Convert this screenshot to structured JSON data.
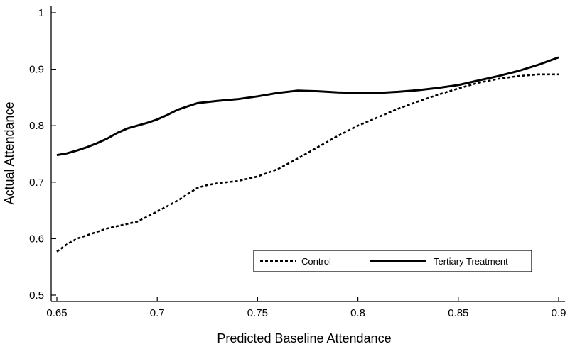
{
  "chart_data": {
    "type": "line",
    "title": "",
    "xlabel": "Predicted Baseline Attendance",
    "ylabel": "Actual Attendance",
    "xlim": [
      0.65,
      0.9
    ],
    "ylim": [
      0.5,
      1.0
    ],
    "x_ticks": [
      "0.65",
      "0.7",
      "0.75",
      "0.8",
      "0.85",
      "0.9"
    ],
    "y_ticks": [
      "0.5",
      "0.6",
      "0.7",
      "0.8",
      "0.9",
      "1"
    ],
    "grid": false,
    "legend_position": "bottom-right",
    "series": [
      {
        "name": "Control",
        "style": "dashed",
        "color": "#000000",
        "points": [
          [
            0.65,
            0.577
          ],
          [
            0.655,
            0.59
          ],
          [
            0.66,
            0.6
          ],
          [
            0.665,
            0.606
          ],
          [
            0.67,
            0.612
          ],
          [
            0.675,
            0.618
          ],
          [
            0.68,
            0.622
          ],
          [
            0.69,
            0.63
          ],
          [
            0.7,
            0.648
          ],
          [
            0.71,
            0.667
          ],
          [
            0.72,
            0.69
          ],
          [
            0.725,
            0.695
          ],
          [
            0.73,
            0.698
          ],
          [
            0.74,
            0.702
          ],
          [
            0.75,
            0.71
          ],
          [
            0.76,
            0.723
          ],
          [
            0.77,
            0.742
          ],
          [
            0.78,
            0.762
          ],
          [
            0.79,
            0.782
          ],
          [
            0.8,
            0.8
          ],
          [
            0.81,
            0.815
          ],
          [
            0.82,
            0.83
          ],
          [
            0.83,
            0.843
          ],
          [
            0.84,
            0.855
          ],
          [
            0.85,
            0.866
          ],
          [
            0.86,
            0.876
          ],
          [
            0.87,
            0.883
          ],
          [
            0.88,
            0.888
          ],
          [
            0.89,
            0.891
          ],
          [
            0.9,
            0.891
          ]
        ]
      },
      {
        "name": "Tertiary Treatment",
        "style": "solid",
        "color": "#000000",
        "points": [
          [
            0.65,
            0.748
          ],
          [
            0.655,
            0.751
          ],
          [
            0.66,
            0.756
          ],
          [
            0.665,
            0.762
          ],
          [
            0.67,
            0.769
          ],
          [
            0.675,
            0.777
          ],
          [
            0.68,
            0.787
          ],
          [
            0.685,
            0.795
          ],
          [
            0.69,
            0.8
          ],
          [
            0.695,
            0.805
          ],
          [
            0.7,
            0.811
          ],
          [
            0.705,
            0.819
          ],
          [
            0.71,
            0.828
          ],
          [
            0.715,
            0.834
          ],
          [
            0.72,
            0.84
          ],
          [
            0.73,
            0.844
          ],
          [
            0.74,
            0.847
          ],
          [
            0.75,
            0.852
          ],
          [
            0.76,
            0.858
          ],
          [
            0.77,
            0.862
          ],
          [
            0.78,
            0.861
          ],
          [
            0.79,
            0.859
          ],
          [
            0.8,
            0.858
          ],
          [
            0.81,
            0.858
          ],
          [
            0.82,
            0.86
          ],
          [
            0.83,
            0.863
          ],
          [
            0.84,
            0.867
          ],
          [
            0.85,
            0.872
          ],
          [
            0.86,
            0.88
          ],
          [
            0.87,
            0.888
          ],
          [
            0.88,
            0.897
          ],
          [
            0.89,
            0.908
          ],
          [
            0.9,
            0.921
          ]
        ]
      }
    ]
  }
}
